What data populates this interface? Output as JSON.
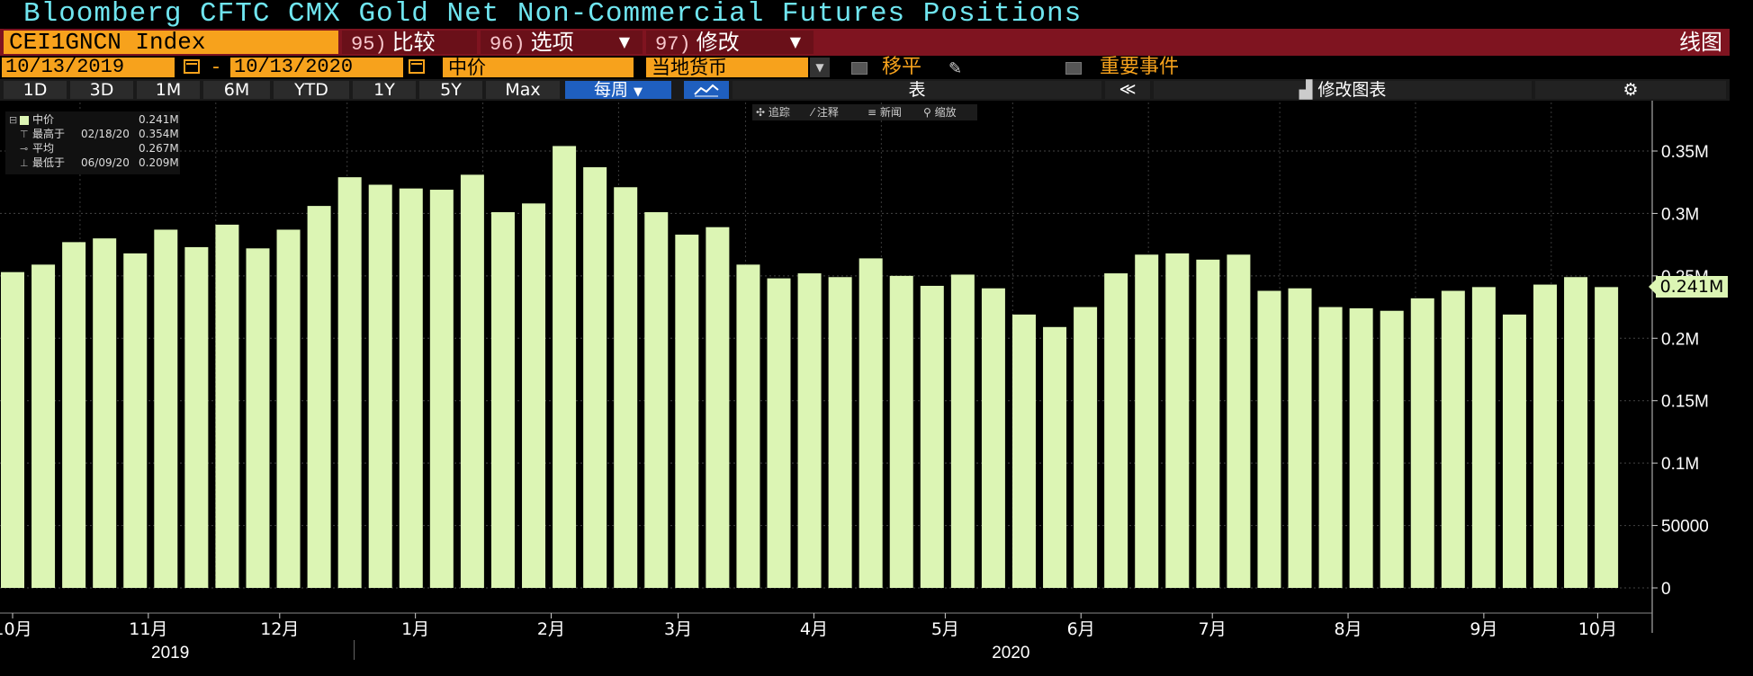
{
  "title": "Bloomberg CFTC CMX Gold Net Non-Commercial Futures Positions",
  "menu": {
    "ticker": "CEI1GNCN Index",
    "compare_num": "95)",
    "compare_label": "比较",
    "options_num": "96)",
    "options_label": "选项",
    "edit_num": "97)",
    "edit_label": "修改",
    "chart_type": "线图"
  },
  "params": {
    "start_date": "10/13/2019",
    "end_date": "10/13/2020",
    "dash": "-",
    "price_field": "中价",
    "currency": "当地货币",
    "moving_avg_label": "移平",
    "events_label": "重要事件"
  },
  "toolbar": {
    "ranges": [
      "1D",
      "3D",
      "1M",
      "6M",
      "YTD",
      "1Y",
      "5Y",
      "Max"
    ],
    "frequency": "每周",
    "table_label": "表",
    "collapse": "≪",
    "edit_chart": "修改图表",
    "gear": "⚙"
  },
  "annotation_tools": {
    "track": "追踪",
    "note": "注释",
    "news": "新闻",
    "zoom": "缩放"
  },
  "legend": {
    "series_name": "中价",
    "series_value": "0.241M",
    "high_label": "最高于",
    "high_date": "02/18/20",
    "high_value": "0.354M",
    "avg_label": "平均",
    "avg_value": "0.267M",
    "low_label": "最低于",
    "low_date": "06/09/20",
    "low_value": "0.209M"
  },
  "last_value_tag": "0.241M",
  "colors": {
    "bar": "#dcf5b4",
    "title": "#6fe5ef",
    "accent": "#f7a21c",
    "menu_bar": "#7f1420"
  },
  "chart_data": {
    "type": "bar",
    "title": "Bloomberg CFTC CMX Gold Net Non-Commercial Futures Positions",
    "x": [
      "2019-10-15",
      "2019-10-22",
      "2019-10-29",
      "2019-11-05",
      "2019-11-12",
      "2019-11-19",
      "2019-11-26",
      "2019-12-03",
      "2019-12-10",
      "2019-12-17",
      "2019-12-24",
      "2019-12-31",
      "2020-01-07",
      "2020-01-14",
      "2020-01-21",
      "2020-01-28",
      "2020-02-04",
      "2020-02-11",
      "2020-02-18",
      "2020-02-25",
      "2020-03-03",
      "2020-03-10",
      "2020-03-17",
      "2020-03-24",
      "2020-03-31",
      "2020-04-07",
      "2020-04-14",
      "2020-04-21",
      "2020-04-28",
      "2020-05-05",
      "2020-05-12",
      "2020-05-19",
      "2020-05-26",
      "2020-06-02",
      "2020-06-09",
      "2020-06-16",
      "2020-06-23",
      "2020-06-30",
      "2020-07-07",
      "2020-07-14",
      "2020-07-21",
      "2020-07-28",
      "2020-08-04",
      "2020-08-11",
      "2020-08-18",
      "2020-08-25",
      "2020-09-01",
      "2020-09-08",
      "2020-09-15",
      "2020-09-22",
      "2020-09-29",
      "2020-10-06",
      "2020-10-13"
    ],
    "values": [
      253000,
      259000,
      277000,
      280000,
      268000,
      287000,
      273000,
      291000,
      272000,
      287000,
      306000,
      329000,
      323000,
      320000,
      319000,
      331000,
      301000,
      308000,
      354000,
      337000,
      321000,
      301000,
      283000,
      289000,
      259000,
      248000,
      252000,
      249000,
      264000,
      250000,
      242000,
      251000,
      240000,
      219000,
      209000,
      225000,
      252000,
      267000,
      268000,
      263000,
      267000,
      238000,
      240000,
      225000,
      224000,
      222000,
      232000,
      238000,
      241000,
      219000,
      243000,
      249000,
      241000
    ],
    "ylim": [
      0,
      380000
    ],
    "yticks": [
      0,
      50000,
      100000,
      150000,
      200000,
      250000,
      300000,
      350000
    ],
    "ytick_labels": [
      "0",
      "50000",
      "0.1M",
      "0.15M",
      "0.2M",
      "0.25M",
      "0.3M",
      "0.35M"
    ],
    "xtick_labels": [
      "10月",
      "11月",
      "12月",
      "1月",
      "2月",
      "3月",
      "4月",
      "5月",
      "6月",
      "7月",
      "8月",
      "9月",
      "10月"
    ],
    "xtick_dates": [
      "2019-10-15",
      "2019-11-15",
      "2019-12-15",
      "2020-01-15",
      "2020-02-15",
      "2020-03-15",
      "2020-04-15",
      "2020-05-15",
      "2020-06-15",
      "2020-07-15",
      "2020-08-15",
      "2020-09-15",
      "2020-10-11"
    ],
    "year_labels": [
      "2019",
      "2020"
    ],
    "year_centers": [
      "2019-11-20",
      "2020-05-30"
    ],
    "year_boundary": "2020-01-01",
    "grid": true,
    "legend": "top-left",
    "ylabel": "",
    "xlabel": ""
  }
}
